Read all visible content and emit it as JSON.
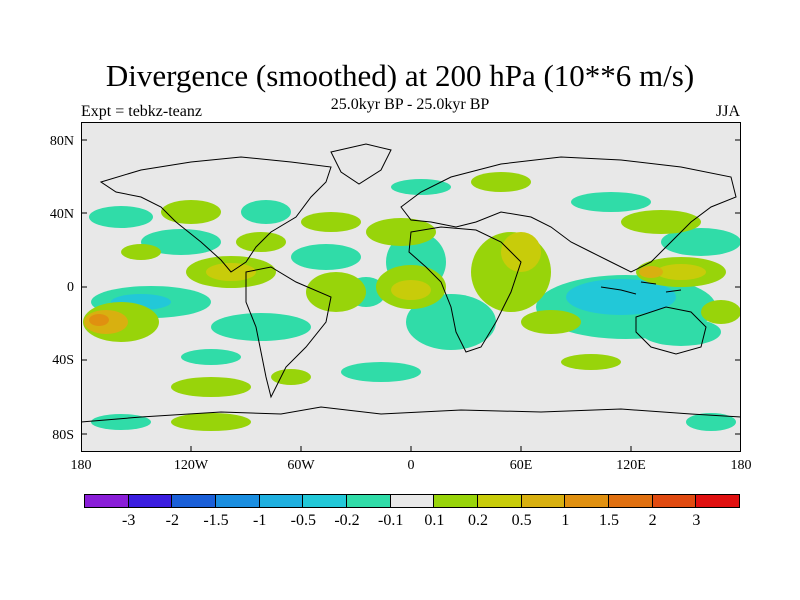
{
  "title": "Divergence (smoothed) at 200 hPa (10**6 m/s)",
  "subtitle": "25.0kyr BP - 25.0kyr BP",
  "experiment": "Expt = tebkz-teanz",
  "season": "JJA",
  "lat_labels": [
    "80N",
    "40N",
    "0",
    "40S",
    "80S"
  ],
  "lon_labels": [
    "180",
    "120W",
    "60W",
    "0",
    "60E",
    "120E",
    "180"
  ],
  "colorbar": {
    "colors": [
      "#8a1ed8",
      "#3b1ee0",
      "#1a5fd8",
      "#1a8ee0",
      "#1fb0e0",
      "#22c8d8",
      "#30dca8",
      "#e8e8e8",
      "#98d40a",
      "#c8cc0a",
      "#d8b010",
      "#e09010",
      "#e07010",
      "#e04a10",
      "#e01010"
    ],
    "labels": [
      "-3",
      "-2",
      "-1.5",
      "-1",
      "-0.5",
      "-0.2",
      "-0.1",
      "0.1",
      "0.2",
      "0.5",
      "1",
      "1.5",
      "2",
      "3"
    ]
  }
}
